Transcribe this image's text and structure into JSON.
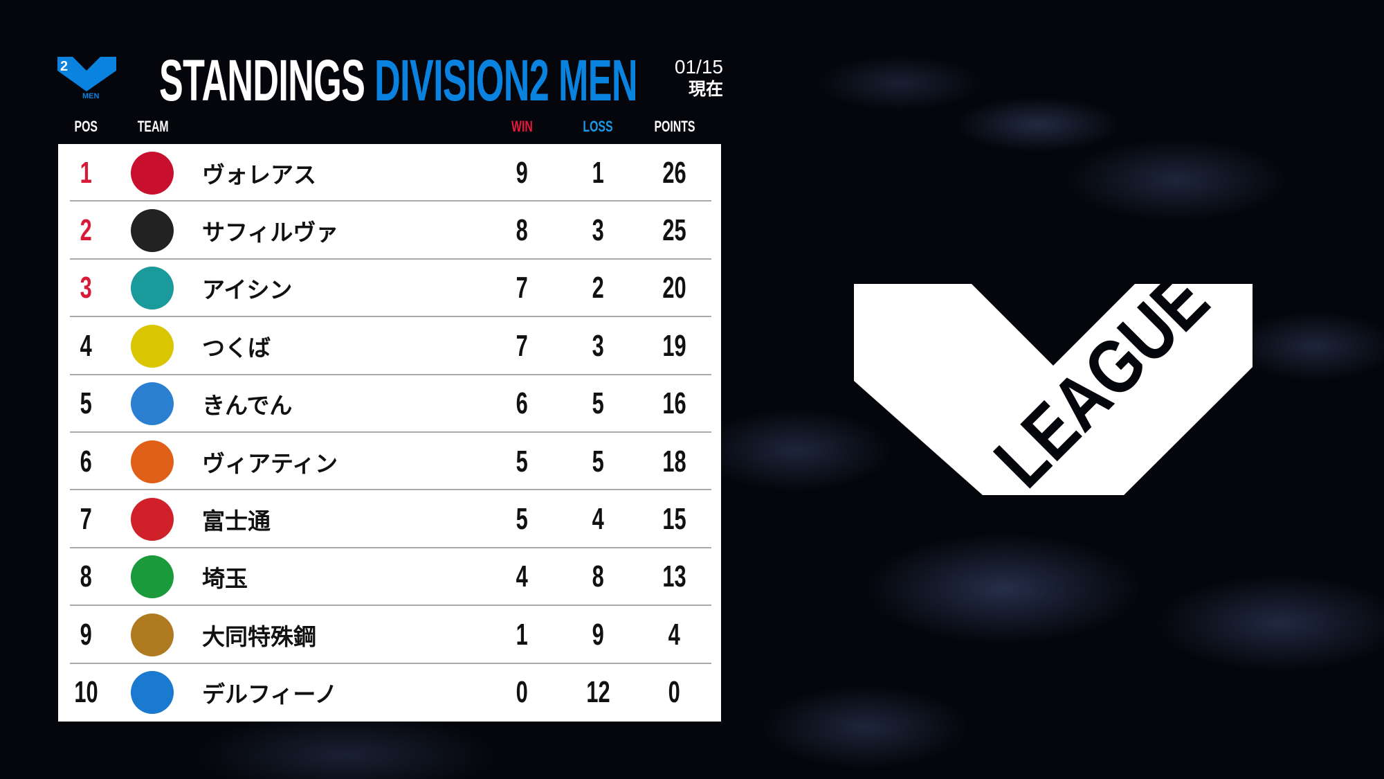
{
  "header": {
    "logo_text": "2 LEAGUE MEN",
    "title_white": "STANDINGS",
    "title_blue": "DIVISION2 MEN",
    "date": "01/15",
    "date_suffix": "現在"
  },
  "columns": {
    "pos": "POS",
    "team": "TEAM",
    "win": "WIN",
    "loss": "LOSS",
    "points": "POINTS"
  },
  "colors": {
    "accent_blue": "#0a82e0",
    "win_red": "#e8173b",
    "loss_blue": "#1a9ae8",
    "top3_red": "#d71a38"
  },
  "rows": [
    {
      "pos": "1",
      "team": "ヴォレアス",
      "win": "9",
      "loss": "1",
      "points": "26",
      "logo": "voreas-logo",
      "color": "#c8102e"
    },
    {
      "pos": "2",
      "team": "サフィルヴァ",
      "win": "8",
      "loss": "3",
      "points": "25",
      "logo": "safilva-logo",
      "color": "#222222"
    },
    {
      "pos": "3",
      "team": "アイシン",
      "win": "7",
      "loss": "2",
      "points": "20",
      "logo": "tealmare-logo",
      "color": "#1a9a9a"
    },
    {
      "pos": "4",
      "team": "つくば",
      "win": "7",
      "loss": "3",
      "points": "19",
      "logo": "tsukuba-logo",
      "color": "#d9c600"
    },
    {
      "pos": "5",
      "team": "きんでん",
      "win": "6",
      "loss": "5",
      "points": "16",
      "logo": "trinity-blitzs-logo",
      "color": "#2a7fd0"
    },
    {
      "pos": "6",
      "team": "ヴィアティン",
      "win": "5",
      "loss": "5",
      "points": "18",
      "logo": "viatin-logo",
      "color": "#e0601a"
    },
    {
      "pos": "7",
      "team": "富士通",
      "win": "5",
      "loss": "4",
      "points": "15",
      "logo": "fujitsu-logo",
      "color": "#d0202a"
    },
    {
      "pos": "8",
      "team": "埼玉",
      "win": "4",
      "loss": "8",
      "points": "13",
      "logo": "azalea-logo",
      "color": "#1a9a3a"
    },
    {
      "pos": "9",
      "team": "大同特殊鋼",
      "win": "1",
      "loss": "9",
      "points": "4",
      "logo": "daido-logo",
      "color": "#b07a20"
    },
    {
      "pos": "10",
      "team": "デルフィーノ",
      "win": "0",
      "loss": "12",
      "points": "0",
      "logo": "delfino-logo",
      "color": "#1a7ad0"
    }
  ],
  "brand_logo": "V LEAGUE"
}
